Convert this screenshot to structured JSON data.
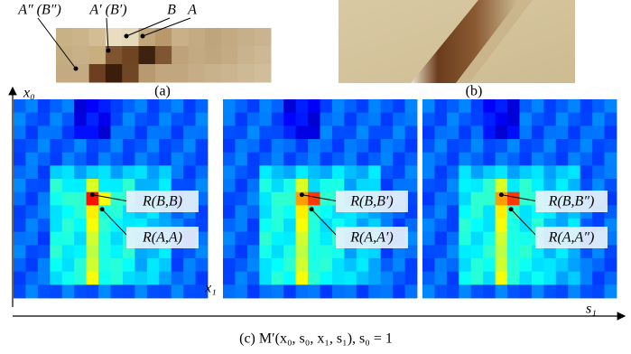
{
  "panel_a": {
    "labels": [
      "A″ (B″)",
      "A′ (B′)",
      "B",
      "A"
    ],
    "caption": "(a)"
  },
  "panel_b": {
    "caption": "(b)"
  },
  "panel_c": {
    "axes": {
      "x0": "x₀",
      "x1": "x₁",
      "s1": "s₁"
    },
    "maps": [
      {
        "labels": [
          "R(B,B)",
          "R(A,A)"
        ]
      },
      {
        "labels": [
          "R(B,B′)",
          "R(A,A′)"
        ]
      },
      {
        "labels": [
          "R(B,B″)",
          "R(A,A″)"
        ]
      }
    ],
    "caption": "(c) M′(x₀, s₀, x₁, s₁), s₀ = 1"
  }
}
